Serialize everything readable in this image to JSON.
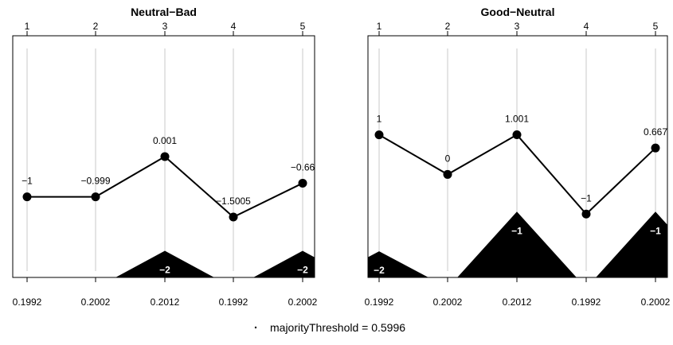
{
  "chart_data": [
    {
      "type": "line",
      "title": "Neutral−Bad",
      "top_ticks": [
        "1",
        "2",
        "3",
        "4",
        "5"
      ],
      "bottom_ticks": [
        "0.1992",
        "0.2002",
        "0.2012",
        "0.1992",
        "0.2002"
      ],
      "x": [
        1,
        2,
        3,
        4,
        5
      ],
      "values": [
        -1,
        -0.999,
        0.001,
        -1.5005,
        -0.66
      ],
      "value_labels": [
        "−1",
        "−0.999",
        "0.001",
        "−1.5005",
        "−0.66"
      ],
      "ylim": [
        -3.0,
        3.0
      ],
      "mountains": [
        {
          "center": 3,
          "label": "−2",
          "height": 0.66
        },
        {
          "center": 5,
          "label": "−2",
          "height": 0.66
        }
      ],
      "grid": true
    },
    {
      "type": "line",
      "title": "Good−Neutral",
      "top_ticks": [
        "1",
        "2",
        "3",
        "4",
        "5"
      ],
      "bottom_ticks": [
        "0.1992",
        "0.2002",
        "0.2012",
        "0.1992",
        "0.2002"
      ],
      "x": [
        1,
        2,
        3,
        4,
        5
      ],
      "values": [
        1,
        0,
        1.001,
        -1,
        0.667
      ],
      "value_labels": [
        "1",
        "0",
        "1.001",
        "−1",
        "0.667"
      ],
      "ylim": [
        -2.6,
        3.5
      ],
      "mountains": [
        {
          "center": 1,
          "label": "−2",
          "height": 0.66
        },
        {
          "center": 3,
          "label": "−1",
          "height": 1.66
        },
        {
          "center": 5,
          "label": "−1",
          "height": 1.66
        }
      ],
      "grid": true
    }
  ],
  "footer": {
    "threshold_label": "majorityThreshold = 0.5996"
  }
}
